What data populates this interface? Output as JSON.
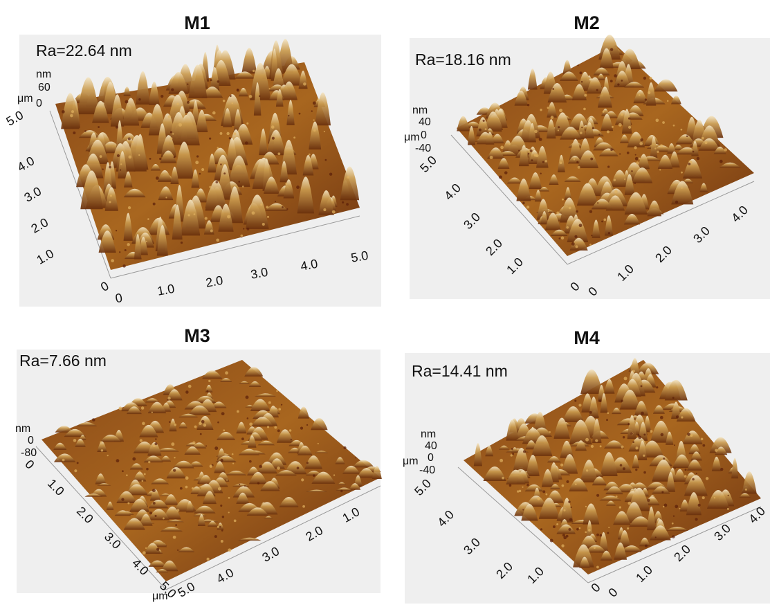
{
  "panels": [
    {
      "title": "M1",
      "ra": "Ra=22.64 nm",
      "z_unit": "nm",
      "z_ticks": [
        "60",
        "0"
      ],
      "xy_unit": "μm",
      "y_ticks": [
        "5.0",
        "4.0",
        "3.0",
        "2.0",
        "1.0",
        "0"
      ],
      "x_ticks": [
        "0",
        "1.0",
        "2.0",
        "3.0",
        "4.0",
        "5.0"
      ]
    },
    {
      "title": "M2",
      "ra": "Ra=18.16 nm",
      "z_unit": "nm",
      "z_ticks": [
        "40",
        "0",
        "-40"
      ],
      "xy_unit": "μm",
      "y_ticks": [
        "5.0",
        "4.0",
        "3.0",
        "2.0",
        "1.0",
        "0"
      ],
      "x_ticks": [
        "0",
        "1.0",
        "2.0",
        "3.0",
        "4.0"
      ]
    },
    {
      "title": "M3",
      "ra": "Ra=7.66 nm",
      "z_unit": "nm",
      "z_ticks": [
        "0",
        "-80"
      ],
      "xy_unit": "μm",
      "y_ticks": [
        "0",
        "1.0",
        "2.0",
        "3.0",
        "4.0",
        "5.0"
      ],
      "x_ticks": [
        "5.0",
        "4.0",
        "3.0",
        "2.0",
        "1.0"
      ]
    },
    {
      "title": "M4",
      "ra": "Ra=14.41 nm",
      "z_unit": "nm",
      "z_ticks": [
        "40",
        "0",
        "-40"
      ],
      "xy_unit": "μm",
      "y_ticks": [
        "5.0",
        "4.0",
        "3.0",
        "2.0",
        "1.0",
        "0"
      ],
      "x_ticks": [
        "0",
        "1.0",
        "2.0",
        "3.0",
        "4.0"
      ]
    }
  ]
}
